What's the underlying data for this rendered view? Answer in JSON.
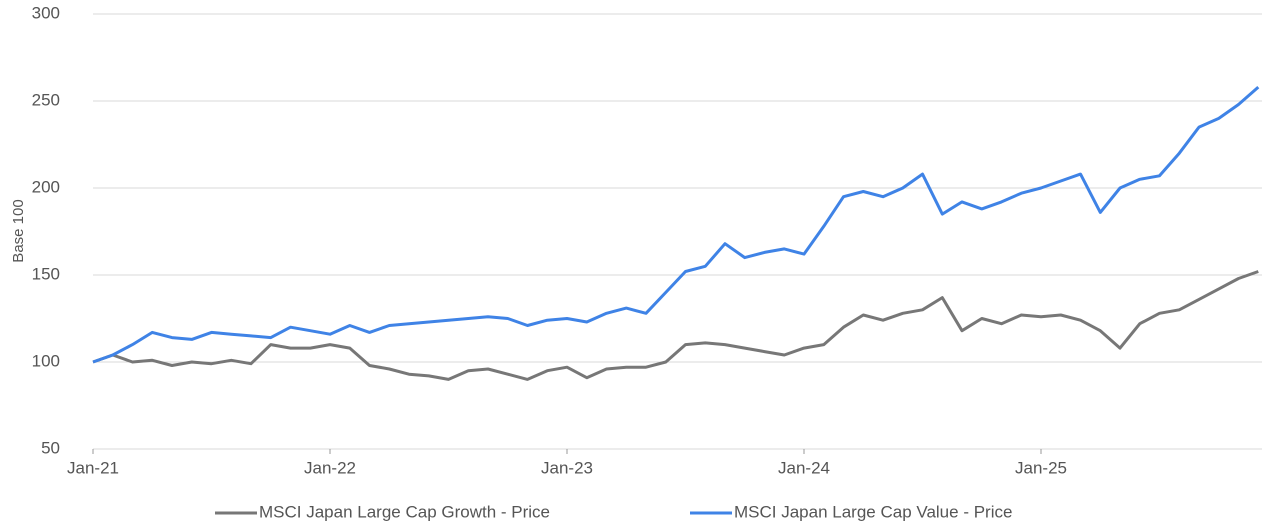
{
  "chart_data": {
    "type": "line",
    "y_label": "Base 100",
    "x": [
      "2021-01",
      "2021-02",
      "2021-03",
      "2021-04",
      "2021-05",
      "2021-06",
      "2021-07",
      "2021-08",
      "2021-09",
      "2021-10",
      "2021-11",
      "2021-12",
      "2022-01",
      "2022-02",
      "2022-03",
      "2022-04",
      "2022-05",
      "2022-06",
      "2022-07",
      "2022-08",
      "2022-09",
      "2022-10",
      "2022-11",
      "2022-12",
      "2023-01",
      "2023-02",
      "2023-03",
      "2023-04",
      "2023-05",
      "2023-06",
      "2023-07",
      "2023-08",
      "2023-09",
      "2023-10",
      "2023-11",
      "2023-12",
      "2024-01",
      "2024-02",
      "2024-03",
      "2024-04",
      "2024-05",
      "2024-06",
      "2024-07",
      "2024-08",
      "2024-09",
      "2024-10",
      "2024-11",
      "2024-12",
      "2025-01",
      "2025-02",
      "2025-03",
      "2025-04",
      "2025-05",
      "2025-06",
      "2025-07",
      "2025-08",
      "2025-09",
      "2025-10",
      "2025-11",
      "2025-12"
    ],
    "series": [
      {
        "name": "MSCI Japan Large Cap Growth - Price",
        "color": "#777777",
        "values": [
          100,
          104,
          100,
          101,
          98,
          100,
          99,
          101,
          99,
          110,
          108,
          108,
          110,
          108,
          98,
          96,
          93,
          92,
          90,
          95,
          96,
          93,
          90,
          95,
          97,
          91,
          96,
          97,
          97,
          100,
          110,
          111,
          110,
          108,
          106,
          104,
          108,
          110,
          120,
          127,
          124,
          128,
          130,
          137,
          118,
          125,
          122,
          127,
          126,
          127,
          124,
          118,
          108,
          122,
          128,
          130,
          136,
          142,
          148,
          152
        ]
      },
      {
        "name": "MSCI Japan Large Cap Value - Price",
        "color": "#3f83e6",
        "values": [
          100,
          104,
          110,
          117,
          114,
          113,
          117,
          116,
          115,
          114,
          120,
          118,
          116,
          121,
          117,
          121,
          122,
          123,
          124,
          125,
          126,
          125,
          121,
          124,
          125,
          123,
          128,
          131,
          128,
          140,
          152,
          155,
          168,
          160,
          163,
          165,
          162,
          178,
          195,
          198,
          195,
          200,
          208,
          185,
          192,
          188,
          192,
          197,
          200,
          204,
          208,
          186,
          200,
          205,
          207,
          220,
          235,
          240,
          248,
          258
        ]
      }
    ],
    "xticks": [
      {
        "value": "2021-01",
        "label": "Jan-21"
      },
      {
        "value": "2022-01",
        "label": "Jan-22"
      },
      {
        "value": "2023-01",
        "label": "Jan-23"
      },
      {
        "value": "2024-01",
        "label": "Jan-24"
      },
      {
        "value": "2025-01",
        "label": "Jan-25"
      }
    ],
    "ylim": [
      50,
      300
    ],
    "yticks": [
      50,
      100,
      150,
      200,
      250,
      300
    ],
    "grid": true,
    "legend": "bottom"
  }
}
